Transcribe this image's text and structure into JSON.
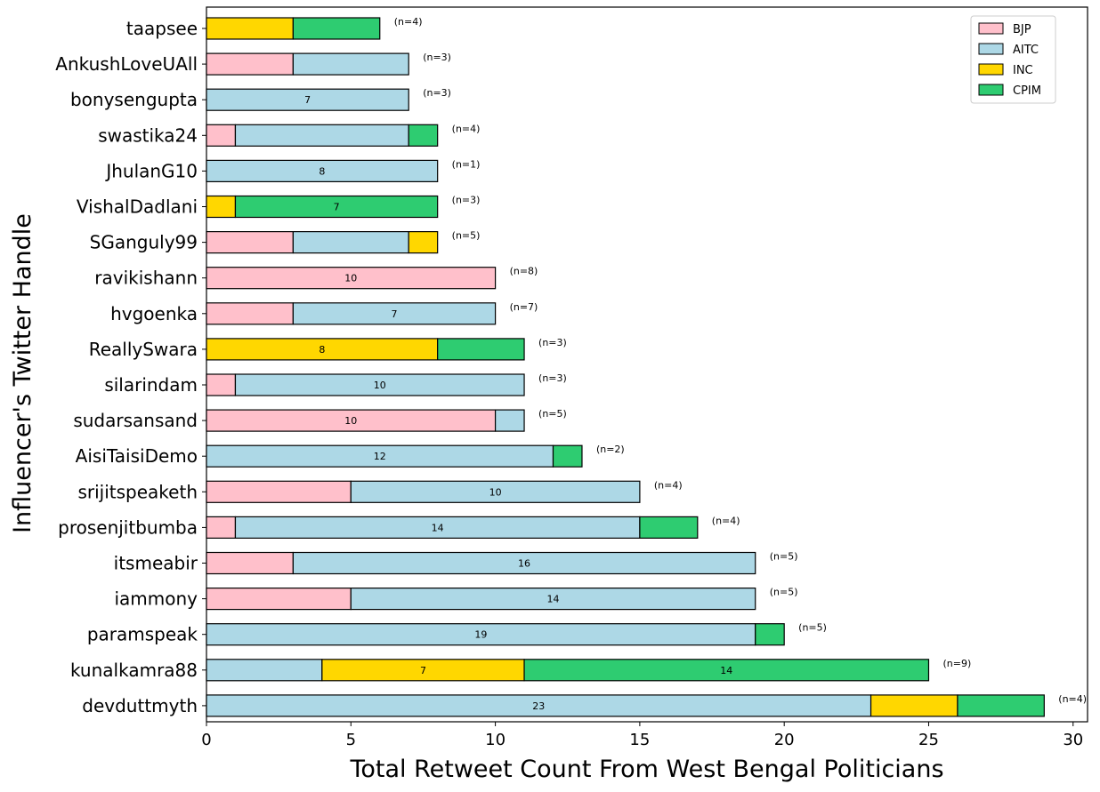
{
  "chart_data": {
    "type": "bar",
    "orientation": "horizontal",
    "stacked": true,
    "xlabel": "Total Retweet Count From West Bengal Politicians",
    "ylabel": "Influencer's Twitter Handle",
    "xlim": [
      0,
      30.5
    ],
    "xticks": [
      "0",
      "5",
      "10",
      "15",
      "20",
      "25",
      "30"
    ],
    "legend_position": "top-right",
    "grid": false,
    "categories": [
      "taapsee",
      "AnkushLoveUAll",
      "bonysengupta",
      "swastika24",
      "JhulanG10",
      "VishalDadlani",
      "SGanguly99",
      "ravikishann",
      "hvgoenka",
      "ReallySwara",
      "silarindam",
      "sudarsansand",
      "AisiTaisiDemo",
      "srijitspeaketh",
      "prosenjitbumba",
      "itsmeabir",
      "iammony",
      "paramspeak",
      "kunalkamra88",
      "devduttmyth"
    ],
    "series": [
      {
        "name": "BJP",
        "color": "#ffc0cb",
        "values": [
          0,
          3,
          0,
          1,
          0,
          0,
          3,
          10,
          3,
          0,
          1,
          10,
          0,
          5,
          1,
          3,
          5,
          0,
          0,
          0
        ]
      },
      {
        "name": "AITC",
        "color": "#add8e6",
        "values": [
          0,
          4,
          7,
          6,
          8,
          0,
          4,
          0,
          7,
          0,
          10,
          1,
          12,
          10,
          14,
          16,
          14,
          19,
          4,
          23
        ]
      },
      {
        "name": "INC",
        "color": "#ffd700",
        "values": [
          3,
          0,
          0,
          0,
          0,
          1,
          1,
          0,
          0,
          8,
          0,
          0,
          0,
          0,
          0,
          0,
          0,
          0,
          7,
          3
        ]
      },
      {
        "name": "CPIM",
        "color": "#2ecc71",
        "values": [
          3,
          0,
          0,
          1,
          0,
          7,
          0,
          0,
          0,
          3,
          0,
          0,
          1,
          0,
          2,
          0,
          0,
          1,
          14,
          3
        ]
      }
    ],
    "n_labels": [
      "(n=4)",
      "(n=3)",
      "(n=3)",
      "(n=4)",
      "(n=1)",
      "(n=3)",
      "(n=5)",
      "(n=8)",
      "(n=7)",
      "(n=3)",
      "(n=3)",
      "(n=5)",
      "(n=2)",
      "(n=4)",
      "(n=4)",
      "(n=5)",
      "(n=5)",
      "(n=5)",
      "(n=9)",
      "(n=4)"
    ],
    "segment_label_threshold": 7
  }
}
